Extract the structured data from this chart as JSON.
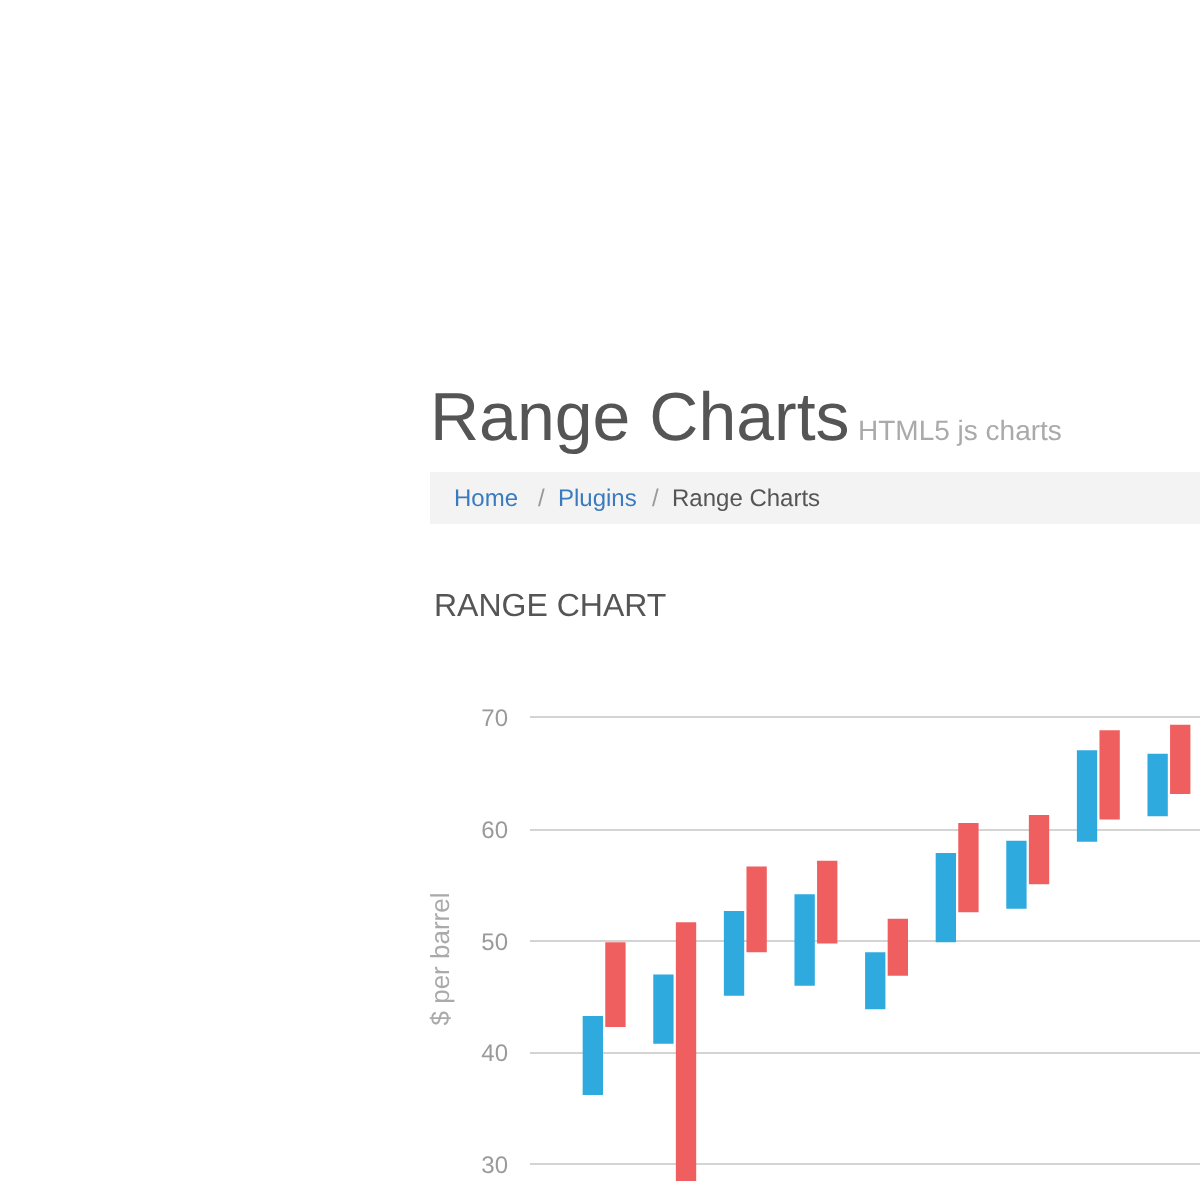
{
  "chart_data": {
    "type": "bar",
    "title": "Range Charts",
    "subtitle": "HTML5 js charts",
    "ylabel": "$ per barrel",
    "annotations": [
      "Home",
      "/",
      "Plugins",
      "/",
      "Range Charts",
      "RANGE CHART"
    ],
    "categories": [
      null,
      null,
      null,
      null,
      null,
      null,
      null,
      null,
      null
    ],
    "series": [
      {
        "color": "#2eaadf",
        "base": [
          36.2,
          40.8,
          45.1,
          46.0,
          43.9,
          49.9,
          52.9,
          58.9,
          61.2
        ],
        "values": [
          7.1,
          6.2,
          7.6,
          8.2,
          5.1,
          8.0,
          6.1,
          8.2,
          5.6
        ]
      },
      {
        "color": "#f05f60",
        "base": [
          42.3,
          28.5,
          49.0,
          49.8,
          46.9,
          52.6,
          55.1,
          60.9,
          63.2
        ],
        "values": [
          7.6,
          23.2,
          7.7,
          7.4,
          5.1,
          8.0,
          6.2,
          8.0,
          6.2
        ]
      }
    ],
    "ylim": [
      26.8,
      70
    ],
    "yticks": [
      30,
      40,
      50,
      60,
      70
    ],
    "grid": "y"
  }
}
